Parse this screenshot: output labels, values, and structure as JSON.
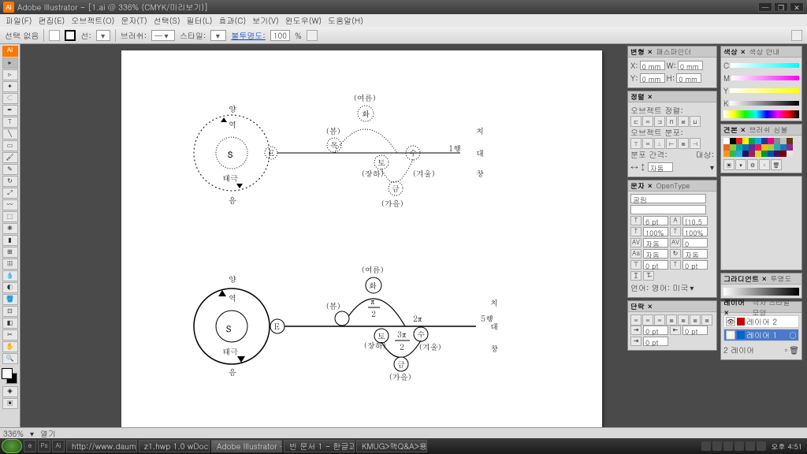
{
  "title": "Adobe Illustrator - [1.ai @ 336% (CMYK/미리보기)]",
  "menus": [
    "파일(F)",
    "편집(E)",
    "오브젝트(O)",
    "문자(T)",
    "선택(S)",
    "필터(L)",
    "효과(C)",
    "보기(V)",
    "윈도우(W)",
    "도움말(H)"
  ],
  "toolbar": {
    "nosel": "선택 없음",
    "line": "선:",
    "brush": "브러쉬:",
    "style": "스타일:",
    "opacity": "불투명도:",
    "opacity_val": "100",
    "pct": "%"
  },
  "zoom": "336%",
  "status_open": "열기",
  "transform": {
    "tab1": "변형 ×",
    "tab2": "패스파인더",
    "x": "X:",
    "y": "Y:",
    "w": "W:",
    "h": "H:",
    "val": "0 mm"
  },
  "align": {
    "tab": "정렬 ×",
    "l1": "오브젝트 정렬:",
    "l2": "오브젝트 분포:",
    "l3": "분포 간격:",
    "l4": "대상:",
    "auto": "자동"
  },
  "char": {
    "tab1": "문자 ×",
    "tab2": "OpenType",
    "font": "굴림",
    "size": "6 pt",
    "leading": "(10.5 pt)",
    "kern": "자동",
    "track": "0",
    "hs": "100%",
    "vs": "100%",
    "lang": "언어: 영어: 미국",
    "auto": "자동",
    "pt0": "0 pt"
  },
  "para": {
    "tab": "단락 ×",
    "pt": "0 pt"
  },
  "color": {
    "tab1": "색상 ×",
    "tab2": "색상 안내",
    "c": "C",
    "m": "M",
    "y": "Y",
    "k": "K"
  },
  "swatch": {
    "tab1": "견본 ×",
    "tab2": "브러쉬",
    "tab3": "심볼"
  },
  "grad": {
    "tab1": "그라디언트 ×",
    "tab2": "투명도"
  },
  "layers": {
    "tab1": "레이어 ×",
    "tab2": "격자 스타일 모양",
    "l1": "레이어 2",
    "l2": "레이어 1",
    "count": "2 레이어"
  },
  "swatch_colors": [
    "#ffffff",
    "#000000",
    "#ed1c24",
    "#fff200",
    "#00a651",
    "#00aeef",
    "#2e3192",
    "#ec008c",
    "#898989",
    "#c0c0c0",
    "#603913",
    "#f26522",
    "#8dc63f",
    "#00a99d",
    "#0072bc",
    "#662d91",
    "#ed145b",
    "#fdb913",
    "#a6ce39",
    "#33a9ac",
    "#1c75bc",
    "#92278f",
    "#f7941e",
    "#39b54a",
    "#27aae1",
    "#1b1464",
    "#9e1f63",
    "#d7df23",
    "#009444",
    "#0054a6",
    "#440e62",
    "#790000",
    "#e5e5e5"
  ],
  "taskbar": {
    "tasks": [
      "http://www.daum...",
      "z1.hwp 1.0 wDocu...",
      "Adobe Illustrator - ...",
      "빈 문서 1 - 한글과...",
      "KMUG>맥Q&A>용..."
    ],
    "clock": "오후 4:51"
  },
  "diagram": {
    "top": {
      "S": "S",
      "E": "E",
      "yang": "양",
      "yeok": "역",
      "taegeuk": "태극",
      "eum": "음",
      "summer": "(여름)",
      "hwa": "화",
      "spring": "(봄)",
      "winter": "(겨울)",
      "mok": "목",
      "to": "토",
      "jangha": "(장하)",
      "su": "수",
      "geum": "금",
      "autumn": "(가을)",
      "chi": "치",
      "dae": "대",
      "chang": "창"
    },
    "bot": {
      "S": "S",
      "E": "E",
      "yang": "양",
      "yeok": "역",
      "taegeuk": "태극",
      "eum": "음",
      "summer": "(여름)",
      "hwa": "화",
      "spring": "(봄)",
      "pi2": "π",
      "two": "2",
      "twopi": "2π",
      "ohaeng": "5행",
      "to": "토",
      "jangha": "(장하)",
      "threepi": "3π",
      "su": "수",
      "winter": "(겨울)",
      "geum": "금",
      "autumn": "(가을)",
      "chi": "치",
      "dae": "대",
      "chang": "창"
    }
  }
}
